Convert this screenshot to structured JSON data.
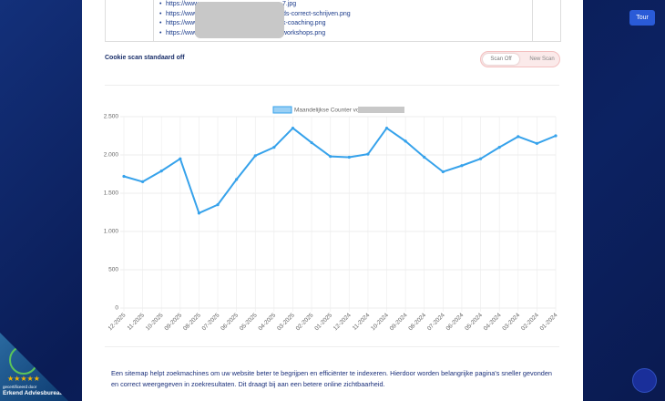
{
  "links": [
    {
      "start": "https://www",
      "end": "7.jpg"
    },
    {
      "start": "https://www",
      "end": "ds-correct-schrijven.png"
    },
    {
      "start": "https://www",
      "end": "k-coaching.png"
    },
    {
      "start": "https://www",
      "end": "workshops.png"
    }
  ],
  "cookie_label": "Cookie scan standaard off",
  "scan_off": "Scan Off",
  "new_scan": "New Scan",
  "tour": "Tour",
  "chart_data": {
    "type": "line",
    "categories": [
      "12-2025",
      "11-2025",
      "10-2025",
      "09-2025",
      "08-2025",
      "07-2025",
      "06-2025",
      "05-2025",
      "04-2025",
      "03-2025",
      "02-2025",
      "01-2025",
      "12-2024",
      "11-2024",
      "10-2024",
      "09-2024",
      "08-2024",
      "07-2024",
      "06-2024",
      "05-2024",
      "04-2024",
      "03-2024",
      "02-2024",
      "01-2024"
    ],
    "series": [
      {
        "name": "Maandelijkse Counter voor",
        "color": "#36a2eb",
        "values": [
          1720,
          1650,
          1790,
          1950,
          1240,
          1350,
          1680,
          1990,
          2100,
          2350,
          2160,
          1980,
          1970,
          2010,
          2350,
          2180,
          1970,
          1780,
          1860,
          1950,
          2100,
          2240,
          2150,
          2250
        ]
      }
    ],
    "ylim": [
      0,
      2500
    ],
    "yticks": [
      0,
      500,
      {
        "value": 1000,
        "label": "1.000"
      },
      {
        "value": 1500,
        "label": "1.500"
      },
      {
        "value": 2000,
        "label": "2.000"
      },
      {
        "value": 2500,
        "label": "2.500"
      }
    ],
    "grid": true
  },
  "description": "Een sitemap helpt zoekmachines om uw website beter te begrijpen en efficiënter te indexeren. Hierdoor worden belangrijke pagina's sneller gevonden en correct weergegeven in zoekresultaten. Dit draagt bij aan een betere online zichtbaarheid.",
  "badge": {
    "top": "gecertificeerd door",
    "bottom": "Erkend Adviesbureau"
  }
}
